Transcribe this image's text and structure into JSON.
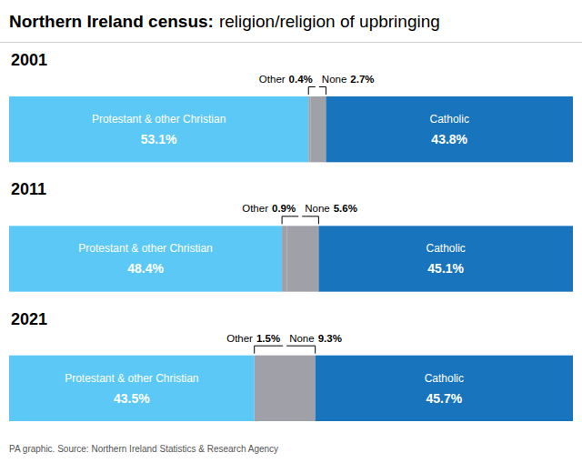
{
  "chart_data": {
    "type": "bar",
    "orientation": "horizontal",
    "stacked": true,
    "title": "Northern Ireland census:",
    "subtitle": "religion/religion of upbringing",
    "categories": [
      "2001",
      "2011",
      "2021"
    ],
    "series": [
      {
        "name": "Protestant & other Christian",
        "color": "#5BC8F5",
        "values": [
          53.1,
          48.4,
          43.5
        ],
        "value_labels": [
          "53.1%",
          "48.4%",
          "43.5%"
        ]
      },
      {
        "name": "Other",
        "color": "#A0A0A8",
        "values": [
          0.4,
          0.9,
          1.5
        ],
        "value_labels": [
          "0.4%",
          "0.9%",
          "1.5%"
        ]
      },
      {
        "name": "None",
        "color": "#A0A0A8",
        "values": [
          2.7,
          5.6,
          9.3
        ],
        "value_labels": [
          "2.7%",
          "5.6%",
          "9.3%"
        ]
      },
      {
        "name": "Catholic",
        "color": "#1874BC",
        "values": [
          43.8,
          45.1,
          45.7
        ],
        "value_labels": [
          "43.8%",
          "45.1%",
          "45.7%"
        ]
      }
    ],
    "xlim": [
      0,
      100
    ],
    "data_labels": true,
    "tick_labels": false,
    "grid": false,
    "annotations": [
      "PA graphic. Source: Northern Ireland Statistics & Research Agency"
    ]
  }
}
